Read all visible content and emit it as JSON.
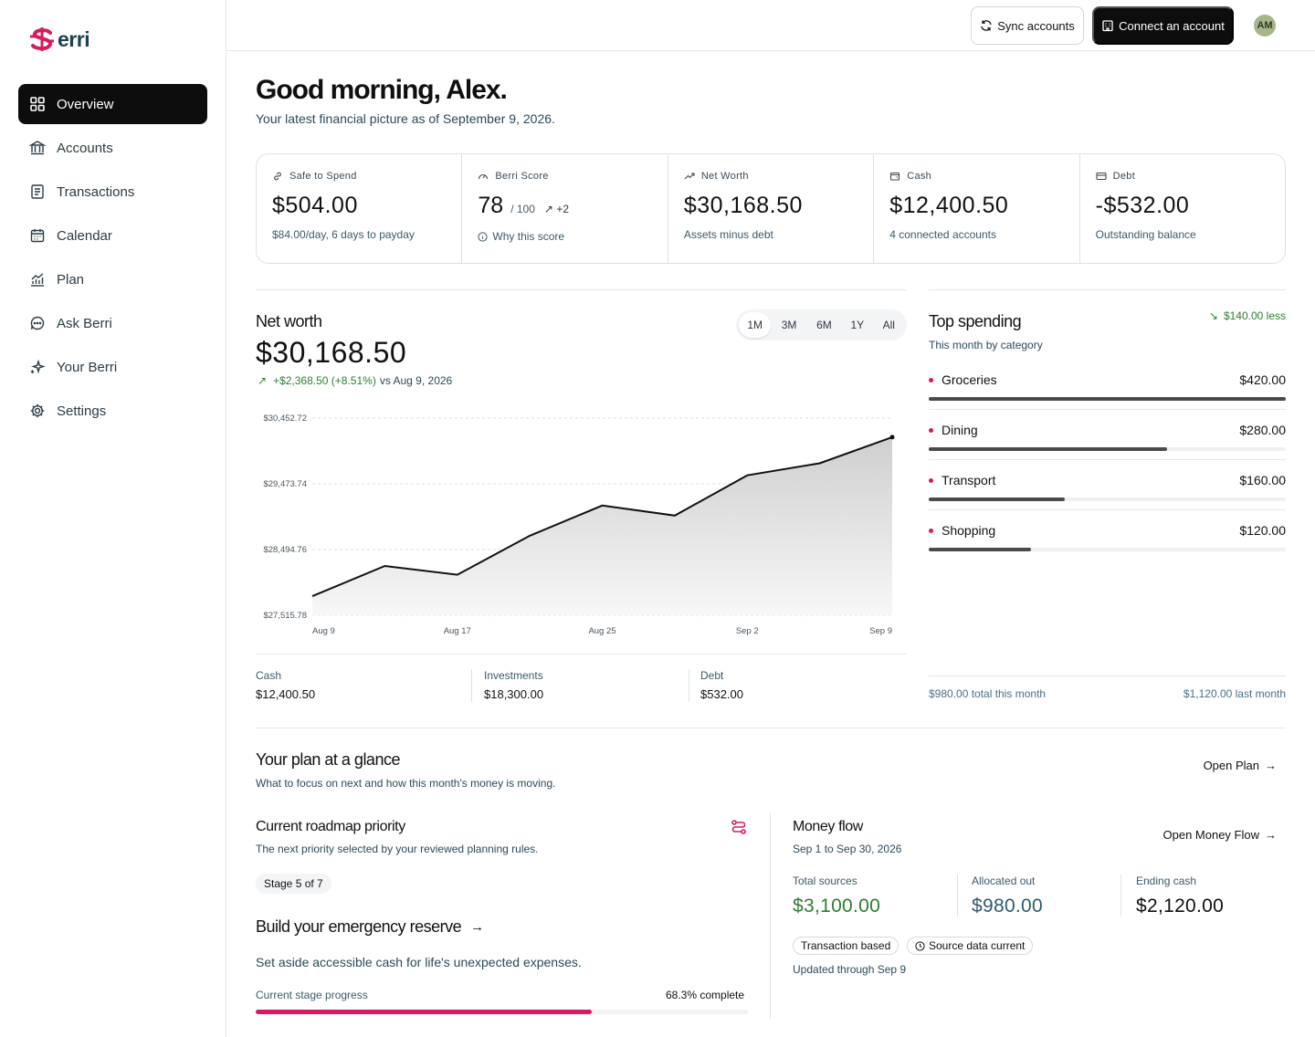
{
  "brand": {
    "mark": "$",
    "name": "Berri",
    "name_suffix": "erri",
    "accent": "#d81b60"
  },
  "sidebar": {
    "items": [
      {
        "label": "Overview",
        "icon": "grid-icon",
        "active": true
      },
      {
        "label": "Accounts",
        "icon": "bank-icon"
      },
      {
        "label": "Transactions",
        "icon": "receipt-icon"
      },
      {
        "label": "Calendar",
        "icon": "calendar-icon"
      },
      {
        "label": "Plan",
        "icon": "chart-growth-icon"
      },
      {
        "label": "Ask Berri",
        "icon": "chat-icon"
      },
      {
        "label": "Your Berri",
        "icon": "sparkle-icon"
      },
      {
        "label": "Settings",
        "icon": "gear-icon"
      }
    ]
  },
  "header": {
    "sync_label": "Sync accounts",
    "connect_label": "Connect an account",
    "avatar_initials": "AM"
  },
  "main": {
    "greeting": "Good morning, Alex.",
    "subtitle": "Your latest financial picture as of September 9, 2026."
  },
  "kpis": {
    "safe": {
      "label": "Safe to Spend",
      "value": "$504.00",
      "sub": "$84.00/day, 6 days to payday"
    },
    "score": {
      "label": "Berri Score",
      "value": "78",
      "of": "/ 100",
      "delta": "+2",
      "link": "Why this score"
    },
    "networth": {
      "label": "Net Worth",
      "value": "$30,168.50",
      "sub": "Assets minus debt"
    },
    "cash": {
      "label": "Cash",
      "value": "$12,400.50",
      "sub": "4 connected accounts"
    },
    "debt": {
      "label": "Debt",
      "value": "-$532.00",
      "sub": "Outstanding balance"
    }
  },
  "networth_panel": {
    "title": "Net worth",
    "value": "$30,168.50",
    "change": "+$2,368.50 (+8.51%)",
    "vs": "vs Aug 9, 2026",
    "ranges": [
      "1M",
      "3M",
      "6M",
      "1Y",
      "All"
    ],
    "active_range": "1M",
    "breakdown": [
      {
        "label": "Cash",
        "value": "$12,400.50"
      },
      {
        "label": "Investments",
        "value": "$18,300.00"
      },
      {
        "label": "Debt",
        "value": "$532.00"
      }
    ]
  },
  "chart_data": {
    "type": "area",
    "title": "",
    "xlabel": "",
    "ylabel": "",
    "x": [
      "Aug 9",
      "Aug 12",
      "Aug 17",
      "Aug 21",
      "Aug 25",
      "Aug 29",
      "Sep 2",
      "Sep 6",
      "Sep 9"
    ],
    "x_ticks": [
      "Aug 9",
      "Aug 17",
      "Aug 25",
      "Sep 2",
      "Sep 9"
    ],
    "y_ticks": [
      "$30,452.72",
      "$29,473.74",
      "$28,494.76",
      "$27,515.78"
    ],
    "ylim": [
      27515.78,
      30452.72
    ],
    "series": [
      {
        "values": [
          27800,
          28250,
          28120,
          28700,
          29150,
          29000,
          29600,
          29780,
          30168.5
        ]
      }
    ],
    "grid": true,
    "line_color": "#111111"
  },
  "top_spending": {
    "title": "Top spending",
    "subtitle": "This month by category",
    "change": "$140.00 less",
    "categories": [
      {
        "name": "Groceries",
        "amount": "$420.00",
        "value": 420
      },
      {
        "name": "Dining",
        "amount": "$280.00",
        "value": 280
      },
      {
        "name": "Transport",
        "amount": "$160.00",
        "value": 160
      },
      {
        "name": "Shopping",
        "amount": "$120.00",
        "value": 120
      }
    ],
    "max_value": 420,
    "total_this_month": "$980.00 total this month",
    "last_month": "$1,120.00 last month"
  },
  "plan": {
    "title": "Your plan at a glance",
    "subtitle": "What to focus on next and how this month's money is moving.",
    "open_label": "Open Plan",
    "roadmap_title": "Current roadmap priority",
    "roadmap_sub": "The next priority selected by your reviewed planning rules.",
    "stage": "Stage 5 of 7",
    "goal_title": "Build your emergency reserve",
    "goal_sub": "Set aside accessible cash for life's unexpected expenses.",
    "progress_label": "Current stage progress",
    "progress_text": "68.3% complete",
    "progress": 0.683
  },
  "money_flow": {
    "title": "Money flow",
    "period": "Sep 1 to Sep 30, 2026",
    "open_label": "Open Money Flow",
    "sources_label": "Total sources",
    "sources_value": "$3,100.00",
    "allocated_label": "Allocated out",
    "allocated_value": "$980.00",
    "ending_label": "Ending cash",
    "ending_value": "$2,120.00",
    "pill_transaction": "Transaction based",
    "pill_source": "Source data current",
    "updated": "Updated through Sep 9",
    "sources_color": "#2e7d32",
    "allocated_color": "#2f5a6e"
  }
}
